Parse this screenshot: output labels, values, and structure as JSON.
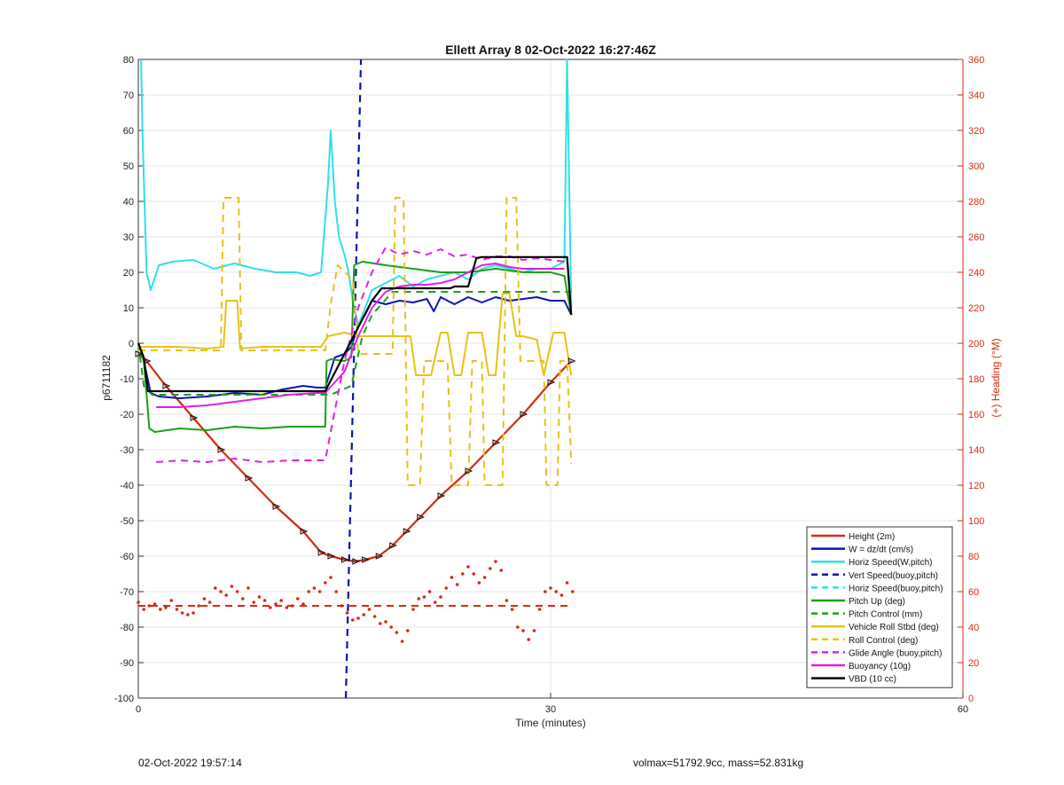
{
  "chart_data": {
    "type": "line",
    "title": "Ellett Array 8 02-Oct-2022 16:27:46Z",
    "xlabel": "Time (minutes)",
    "ylabel": "p6711182",
    "y2label": "(+) Heading (°M)",
    "xlim": [
      0,
      60
    ],
    "ylim": [
      -100,
      80
    ],
    "y2lim": [
      0,
      360
    ],
    "xticks": [
      0,
      30,
      60
    ],
    "yticks": [
      -100,
      -90,
      -80,
      -70,
      -60,
      -50,
      -40,
      -30,
      -20,
      -10,
      0,
      10,
      20,
      30,
      40,
      50,
      60,
      70,
      80
    ],
    "y2ticks": [
      0,
      20,
      40,
      60,
      80,
      100,
      120,
      140,
      160,
      180,
      200,
      220,
      240,
      260,
      280,
      300,
      320,
      340,
      360
    ],
    "grid": true,
    "legend_position": "bottom-right",
    "legend": [
      {
        "label": "Height (2m)",
        "color": "#d62a12",
        "dash": false
      },
      {
        "label": "W = dz/dt (cm/s)",
        "color": "#0a14b4",
        "dash": false
      },
      {
        "label": "Horiz Speed(W,pitch)",
        "color": "#2ee0e8",
        "dash": false
      },
      {
        "label": "Vert Speed(buoy,pitch)",
        "color": "#0a14b4",
        "dash": true
      },
      {
        "label": "Horiz Speed(buoy,pitch)",
        "color": "#2ee0e8",
        "dash": true
      },
      {
        "label": "Pitch Up (deg)",
        "color": "#1aa01a",
        "dash": false
      },
      {
        "label": "Pitch Control (mm)",
        "color": "#1aa01a",
        "dash": true
      },
      {
        "label": "Vehicle Roll Stbd (deg)",
        "color": "#e6c21a",
        "dash": false
      },
      {
        "label": "Roll Control (deg)",
        "color": "#e6c21a",
        "dash": true
      },
      {
        "label": "Glide Angle (buoy,pitch)",
        "color": "#e020e0",
        "dash": true
      },
      {
        "label": "Buoyancy (10g)",
        "color": "#e020e0",
        "dash": false
      },
      {
        "label": "VBD (10 cc)",
        "color": "#000000",
        "dash": false
      }
    ],
    "series": [
      {
        "name": "Height (2m)",
        "color": "#d62a12",
        "dash": false,
        "width": 2.2,
        "x": [
          0,
          0.6,
          2,
          4,
          6,
          8,
          10,
          12,
          13.3,
          14,
          15,
          15.8,
          16.5,
          17.5,
          18.5,
          19.5,
          20.5,
          22,
          24,
          26,
          28,
          30,
          31.5
        ],
        "y": [
          -3,
          -5,
          -12,
          -21,
          -30,
          -38,
          -46,
          -53,
          -59,
          -60,
          -61,
          -61.5,
          -61,
          -60,
          -57,
          -53,
          -49,
          -43,
          -36,
          -28,
          -20,
          -11,
          -5
        ]
      },
      {
        "name": "W = dz/dt (cm/s)",
        "color": "#0a14b4",
        "dash": false,
        "width": 2,
        "x": [
          0,
          0.4,
          0.9,
          1.5,
          3,
          5,
          7,
          9,
          10.5,
          12,
          13,
          13.6,
          14.3,
          15,
          15.5,
          16,
          16.5,
          17,
          18,
          19,
          20,
          21,
          21.5,
          22,
          23,
          24,
          25,
          26,
          27,
          28,
          29,
          30,
          31,
          31.5
        ],
        "y": [
          0,
          -5,
          -14,
          -15,
          -15.5,
          -15,
          -14,
          -14.5,
          -13,
          -12,
          -12.5,
          -12.5,
          -4,
          -3,
          -1,
          5,
          8,
          12,
          11,
          12,
          11.5,
          12.5,
          9,
          13,
          11,
          13,
          11.5,
          13,
          12,
          12.5,
          13,
          12,
          12,
          8
        ]
      },
      {
        "name": "Horiz Speed(W,pitch)",
        "color": "#2ee0e8",
        "dash": false,
        "width": 2,
        "x": [
          0.2,
          0.3,
          0.6,
          0.9,
          1.5,
          2.5,
          4,
          5.5,
          7,
          8.5,
          10,
          11.5,
          12.5,
          13.3,
          13.8,
          14,
          14.3,
          14.6,
          15,
          15.3,
          15.6,
          16,
          16.5,
          17,
          18,
          19,
          20,
          21,
          22,
          23,
          24,
          25,
          26,
          27,
          28,
          29,
          30,
          31,
          31.2,
          31.5
        ],
        "y": [
          80,
          60,
          20,
          15,
          22,
          23,
          23.5,
          21,
          22.5,
          21,
          20,
          20,
          19,
          20,
          45,
          60,
          40,
          30,
          25,
          20,
          12,
          5,
          10,
          15,
          17,
          19,
          16,
          18,
          19,
          20,
          18,
          21,
          22,
          21,
          20,
          21,
          21,
          23,
          80,
          10
        ]
      },
      {
        "name": "Vert Speed(buoy,pitch)",
        "color": "#0a14b4",
        "dash": true,
        "width": 2.2,
        "x": [
          15.1,
          16.2
        ],
        "y": [
          -100,
          80
        ]
      },
      {
        "name": "Pitch Up (deg)",
        "color": "#1aa01a",
        "dash": false,
        "width": 2,
        "x": [
          0,
          0.4,
          0.8,
          1.2,
          3,
          5,
          7,
          9,
          11,
          13,
          13.6,
          13.7,
          14,
          15,
          15.5,
          15.7,
          16.3,
          18,
          20,
          22,
          24,
          26,
          28,
          30,
          31,
          31.5
        ],
        "y": [
          0,
          -5,
          -24,
          -25,
          -24,
          -24.5,
          -23.5,
          -24,
          -23.5,
          -23.5,
          -23.5,
          -5,
          -4.5,
          -5,
          -4,
          22,
          23,
          22,
          21,
          20,
          20,
          21,
          20,
          20,
          19,
          8
        ]
      },
      {
        "name": "Pitch Control (mm)",
        "color": "#1aa01a",
        "dash": true,
        "width": 2,
        "x": [
          0,
          0.4,
          1,
          13.5,
          14,
          15.5,
          16.3,
          17,
          18.5,
          31,
          31.5
        ],
        "y": [
          0,
          -12,
          -14.5,
          -14.5,
          -14.5,
          -12,
          2,
          8,
          14.5,
          14.5,
          14.5
        ]
      },
      {
        "name": "Vehicle Roll Stbd (deg)",
        "color": "#e6c21a",
        "dash": false,
        "width": 2,
        "x": [
          0,
          1,
          3,
          5,
          6.2,
          6.4,
          7.2,
          7.4,
          9,
          11,
          13.3,
          13.8,
          15,
          16,
          16.2,
          18,
          19,
          19.8,
          20.2,
          20.8,
          21.3,
          22,
          22.5,
          23,
          23.5,
          24,
          25,
          25.5,
          26,
          26.5,
          27,
          27.5,
          28,
          29,
          29.5,
          30.2,
          31,
          31.5
        ],
        "y": [
          -1,
          -1,
          -1,
          -1.5,
          -1,
          12,
          12,
          -1.5,
          -1,
          -1,
          -1,
          2,
          3,
          2,
          2,
          2,
          2,
          2,
          -9,
          -9,
          -9,
          3,
          3,
          -9,
          -9,
          3,
          3,
          -9,
          -9,
          14,
          14,
          2,
          2,
          1,
          -9,
          3,
          3,
          -9
        ]
      },
      {
        "name": "Roll Control (deg)",
        "color": "#e6c21a",
        "dash": true,
        "width": 2,
        "x": [
          0,
          6,
          6.2,
          7.3,
          7.5,
          13.6,
          14,
          14.5,
          15.6,
          16,
          18.5,
          18.7,
          19.3,
          19.6,
          20.5,
          20.8,
          22.5,
          22.8,
          24,
          24.3,
          25,
          25.2,
          26.5,
          26.8,
          27.5,
          27.8,
          29.5,
          29.7,
          30.5,
          30.7,
          31.2,
          31.5
        ],
        "y": [
          -2,
          -2,
          41,
          41,
          -2,
          -2,
          11,
          22,
          18,
          -3,
          -3,
          41,
          41,
          -40,
          -40,
          -5,
          -5,
          -40,
          -40,
          -5,
          -5,
          -40,
          -40,
          41,
          41,
          -5,
          -5,
          -40,
          -40,
          -5,
          -5,
          -34
        ]
      },
      {
        "name": "Glide Angle (buoy,pitch)",
        "color": "#e020e0",
        "dash": true,
        "width": 2,
        "x": [
          1.3,
          3,
          5,
          7,
          9,
          11,
          12.5,
          13.6,
          15,
          16,
          17,
          18,
          19,
          20,
          21,
          22,
          23,
          24,
          25,
          26,
          27,
          28,
          29,
          30,
          31
        ],
        "y": [
          -33.5,
          -33,
          -33.5,
          -32.5,
          -33.5,
          -33,
          -33,
          -33,
          -5,
          10,
          20,
          27,
          25,
          26,
          25,
          26.5,
          24.5,
          25,
          23.5,
          24.5,
          24.5,
          23.5,
          24,
          23.5,
          23
        ]
      },
      {
        "name": "Buoyancy (10g)",
        "color": "#e020e0",
        "dash": false,
        "width": 2,
        "x": [
          1.3,
          3,
          5,
          7,
          9,
          11,
          13,
          13.6,
          15,
          16,
          17,
          18,
          19,
          20,
          21,
          22,
          23,
          24,
          25,
          26,
          27,
          28,
          29,
          30,
          31
        ],
        "y": [
          -18,
          -18,
          -17.5,
          -16.5,
          -15.5,
          -14.5,
          -14,
          -14,
          -8,
          2,
          10,
          14.5,
          16,
          16.5,
          16.5,
          17,
          18,
          20,
          22,
          22.5,
          21.5,
          21,
          21,
          21,
          21
        ]
      },
      {
        "name": "VBD (10 cc)",
        "color": "#000000",
        "dash": false,
        "width": 2.2,
        "x": [
          0,
          0.4,
          0.7,
          5,
          10,
          13.6,
          17,
          17.7,
          18,
          20,
          22,
          22.7,
          23,
          24,
          24.6,
          25,
          29,
          30,
          31.2,
          31.5
        ],
        "y": [
          0,
          -4,
          -13.5,
          -13.5,
          -13.5,
          -13.5,
          12,
          15.5,
          15.5,
          15.5,
          15.5,
          15.5,
          16,
          16,
          24,
          24.3,
          24.3,
          24.3,
          24.3,
          8
        ]
      }
    ],
    "heading_points": {
      "name": "Heading",
      "color": "#d62a12",
      "axis": "right",
      "x": [
        0,
        0.4,
        0.8,
        1.2,
        1.6,
        2,
        2.4,
        2.8,
        3.2,
        3.6,
        4,
        4.4,
        4.8,
        5.2,
        5.6,
        6,
        6.4,
        6.8,
        7.2,
        7.6,
        8,
        8.4,
        8.8,
        9.2,
        9.6,
        10,
        10.4,
        10.8,
        11.2,
        11.6,
        12,
        12.4,
        12.8,
        13.2,
        13.6,
        14,
        14.4,
        14.8,
        15.2,
        15.6,
        16,
        16.4,
        16.8,
        17.2,
        17.6,
        18,
        18.4,
        18.8,
        19.2,
        19.6,
        20,
        20.4,
        20.8,
        21.2,
        21.6,
        22,
        22.4,
        22.8,
        23.2,
        23.6,
        24,
        24.4,
        24.8,
        25.2,
        25.6,
        26,
        26.4,
        26.8,
        27.2,
        27.6,
        28,
        28.4,
        28.8,
        29.2,
        29.6,
        30,
        30.4,
        30.8,
        31.2,
        31.6
      ],
      "y": [
        54,
        50,
        52,
        53,
        50,
        51,
        55,
        50,
        48,
        47,
        48,
        52,
        56,
        54,
        62,
        60,
        58,
        63,
        60,
        56,
        62,
        54,
        57,
        55,
        51,
        53,
        55,
        51,
        52,
        56,
        53,
        60,
        62,
        60,
        65,
        68,
        60,
        52,
        48,
        44,
        45,
        47,
        50,
        46,
        42,
        43,
        40,
        37,
        32,
        38,
        50,
        56,
        57,
        60,
        54,
        57,
        62,
        68,
        64,
        70,
        74,
        70,
        65,
        68,
        73,
        77,
        72,
        55,
        50,
        40,
        38,
        33,
        38,
        50,
        60,
        62,
        60,
        58,
        65,
        60
      ]
    },
    "heading_target": {
      "name": "Heading target",
      "color": "#d62a12",
      "dash": true,
      "x": [
        0,
        31.5
      ],
      "y": [
        52,
        52
      ]
    }
  },
  "footer": {
    "timestamp": "02-Oct-2022 19:57:14",
    "specs": "volmax=51792.9cc, mass=52.831kg"
  }
}
